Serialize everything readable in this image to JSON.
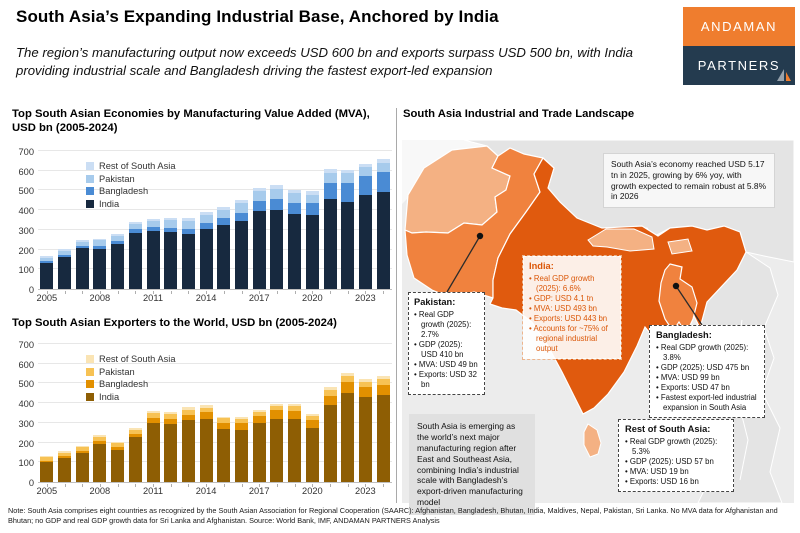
{
  "header": {
    "title": "South Asia’s Expanding Industrial Base, Anchored by India",
    "subtitle": "The region’s manufacturing output now exceeds USD 600 bn and exports surpass USD 500 bn, with India providing industrial scale and Bangladesh driving the fastest export-led expansion",
    "logo": {
      "line1": "ANDAMAN",
      "line2": "PARTNERS",
      "orange": "#EF7D2E",
      "navy": "#243B4F"
    }
  },
  "chart_data": [
    {
      "type": "bar",
      "stacked": true,
      "title": "Top South Asian Economies by Manufacturing Value Added (MVA), USD bn (2005-2024)",
      "categories": [
        2005,
        2006,
        2007,
        2008,
        2009,
        2010,
        2011,
        2012,
        2013,
        2014,
        2015,
        2016,
        2017,
        2018,
        2019,
        2020,
        2021,
        2022,
        2023,
        2024
      ],
      "xticks": [
        "2005",
        "2008",
        "2011",
        "2014",
        "2017",
        "2020",
        "2023"
      ],
      "ylim": [
        0,
        700
      ],
      "ytick_step": 100,
      "legend_order": [
        "Rest of South Asia",
        "Pakistan",
        "Bangladesh",
        "India"
      ],
      "series": [
        {
          "name": "India",
          "color": "#17293F",
          "values": [
            130,
            162,
            207,
            205,
            228,
            285,
            293,
            288,
            280,
            305,
            325,
            345,
            397,
            402,
            380,
            377,
            455,
            440,
            475,
            493
          ]
        },
        {
          "name": "Bangladesh",
          "color": "#4A8BD4",
          "values": [
            10,
            11,
            12,
            14,
            15,
            18,
            21,
            24,
            27,
            30,
            34,
            40,
            48,
            55,
            58,
            60,
            85,
            100,
            97,
            99
          ]
        },
        {
          "name": "Pakistan",
          "color": "#A7CBEC",
          "values": [
            19,
            20,
            22,
            28,
            26,
            28,
            30,
            36,
            40,
            42,
            41,
            50,
            50,
            52,
            48,
            42,
            50,
            48,
            45,
            49
          ]
        },
        {
          "name": "Rest of South Asia",
          "color": "#CBDEF4",
          "values": [
            7,
            8,
            8,
            9,
            9,
            10,
            11,
            12,
            13,
            13,
            14,
            15,
            17,
            18,
            17,
            17,
            17,
            17,
            16,
            19
          ]
        }
      ]
    },
    {
      "type": "bar",
      "stacked": true,
      "title": "Top South Asian Exporters to the World, USD bn (2005-2024)",
      "categories": [
        2005,
        2006,
        2007,
        2008,
        2009,
        2010,
        2011,
        2012,
        2013,
        2014,
        2015,
        2016,
        2017,
        2018,
        2019,
        2020,
        2021,
        2022,
        2023,
        2024
      ],
      "xticks": [
        "2005",
        "2008",
        "2011",
        "2014",
        "2017",
        "2020",
        "2023"
      ],
      "ylim": [
        0,
        700
      ],
      "ytick_step": 100,
      "legend_order": [
        "Rest of South Asia",
        "Pakistan",
        "Bangladesh",
        "India"
      ],
      "series": [
        {
          "name": "India",
          "color": "#8E5E04",
          "values": [
            100,
            121,
            148,
            195,
            165,
            226,
            302,
            295,
            313,
            322,
            268,
            264,
            297,
            322,
            320,
            276,
            393,
            453,
            432,
            443
          ]
        },
        {
          "name": "Bangladesh",
          "color": "#E29000",
          "values": [
            9,
            11,
            12,
            14,
            15,
            19,
            24,
            27,
            29,
            31,
            33,
            35,
            37,
            41,
            40,
            39,
            45,
            55,
            48,
            47
          ]
        },
        {
          "name": "Pakistan",
          "color": "#F7C254",
          "values": [
            16,
            17,
            18,
            20,
            18,
            21,
            25,
            25,
            25,
            25,
            22,
            21,
            22,
            24,
            24,
            22,
            29,
            31,
            28,
            32
          ]
        },
        {
          "name": "Rest of South Asia",
          "color": "#FAE4B4",
          "values": [
            5,
            6,
            7,
            9,
            7,
            8,
            10,
            10,
            11,
            11,
            9,
            9,
            10,
            11,
            12,
            10,
            13,
            14,
            13,
            16
          ]
        }
      ]
    }
  ],
  "map": {
    "section_title": "South Asia Industrial and Trade Landscape",
    "stat_box": "South Asia’s economy reached USD 5.17 tn in 2025, growing by 6% yoy, with growth expected to remain robust at 5.8% in 2026",
    "summary_box": "South Asia is emerging as the world’s next major manufacturing region after East and Southeast Asia, combining India’s industrial scale with Bangladesh’s export-driven manufacturing model",
    "colors": {
      "india": "#E05A0E",
      "pakistan_bangladesh": "#F0823E",
      "other_saarc": "#F4B183",
      "neighbors": "#E4E4E4",
      "background": "#ECECEC"
    },
    "callouts": [
      {
        "id": "pakistan",
        "title": "Pakistan:",
        "bullets": [
          "Real GDP growth (2025): 2.7%",
          "GDP (2025): USD 410 bn",
          "MVA: USD 49 bn",
          "Exports: USD 32 bn"
        ]
      },
      {
        "id": "india",
        "title": "India:",
        "bullets": [
          "Real GDP growth (2025): 6.6%",
          "GDP: USD 4.1 tn",
          "MVA: USD 493 bn",
          "Exports: USD 443 bn",
          "Accounts for ~75% of regional industrial output"
        ]
      },
      {
        "id": "bangladesh",
        "title": "Bangladesh:",
        "bullets": [
          "Real GDP growth (2025): 3.8%",
          "GDP (2025): USD 475 bn",
          "MVA: USD 99 bn",
          "Exports: USD 47 bn",
          "Fastest export-led industrial expansion in South Asia"
        ]
      },
      {
        "id": "rest",
        "title": "Rest of South Asia:",
        "bullets": [
          "Real GDP growth (2025): 5.3%",
          "GDP (2025): USD 57 bn",
          "MVA: USD 19 bn",
          "Exports: USD 16 bn"
        ]
      }
    ]
  },
  "footer": {
    "note": "Note: South Asia comprises eight countries as recognized by the South Asian Association for Regional Cooperation (SAARC): Afghanistan, Bangladesh, Bhutan, India, Maldives, Nepal, Pakistan, Sri Lanka. No MVA data for Afghanistan and Bhutan; no GDP and real GDP growth data for Sri Lanka and Afghanistan. Source: World Bank, IMF, ANDAMAN PARTNERS Analysis"
  }
}
